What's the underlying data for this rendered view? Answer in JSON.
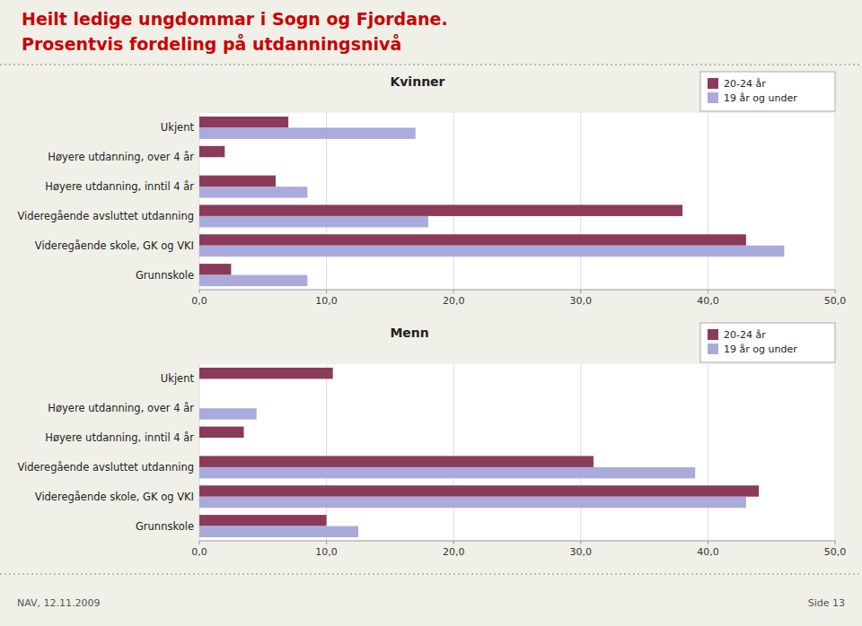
{
  "title": "Heilt ledige ungdommar i Sogn og Fjordane.",
  "subtitle": "Prosentvis fordeling på utdanningsnivå",
  "annotations": [
    "NAV, 12.11.2009",
    "Side 13"
  ],
  "chart_data": [
    {
      "type": "bar",
      "orientation": "horizontal",
      "title": "Kvinner",
      "categories": [
        "Grunnskole",
        "Videregående skole, GK og VKI",
        "Videregående avsluttet utdanning",
        "Høyere utdanning, inntil 4 år",
        "Høyere utdanning, over 4 år",
        "Ukjent"
      ],
      "series": [
        {
          "name": "20-24 år",
          "color": "#8B3A5A",
          "values": [
            2.5,
            43.0,
            38.0,
            6.0,
            2.0,
            7.0
          ]
        },
        {
          "name": "19 år og under",
          "color": "#AAAADD",
          "values": [
            8.5,
            46.0,
            18.0,
            8.5,
            0.0,
            17.0
          ]
        }
      ],
      "xlim": [
        0,
        50
      ],
      "xticks": [
        {
          "value": 0,
          "label": "0,0"
        },
        {
          "value": 10,
          "label": "10,0"
        },
        {
          "value": 20,
          "label": "20,0"
        },
        {
          "value": 30,
          "label": "30,0"
        },
        {
          "value": 40,
          "label": "40,0"
        },
        {
          "value": 50,
          "label": "50,0"
        }
      ],
      "grid": true,
      "legend": "upper right"
    },
    {
      "type": "bar",
      "orientation": "horizontal",
      "title": "Menn",
      "categories": [
        "Grunnskole",
        "Videregående skole, GK og VKI",
        "Videregående avsluttet utdanning",
        "Høyere utdanning, inntil 4 år",
        "Høyere utdanning, over 4 år",
        "Ukjent"
      ],
      "series": [
        {
          "name": "20-24 år",
          "color": "#8B3A5A",
          "values": [
            10.0,
            44.0,
            31.0,
            3.5,
            0.0,
            10.5
          ]
        },
        {
          "name": "19 år og under",
          "color": "#AAAADD",
          "values": [
            12.5,
            43.0,
            39.0,
            0.0,
            4.5,
            0.0
          ]
        }
      ],
      "xlim": [
        0,
        50
      ],
      "xticks": [
        {
          "value": 0,
          "label": "0,0"
        },
        {
          "value": 10,
          "label": "10,0"
        },
        {
          "value": 20,
          "label": "20,0"
        },
        {
          "value": 30,
          "label": "30,0"
        },
        {
          "value": 40,
          "label": "40,0"
        },
        {
          "value": 50,
          "label": "50,0"
        }
      ],
      "grid": true,
      "legend": "upper right"
    }
  ]
}
